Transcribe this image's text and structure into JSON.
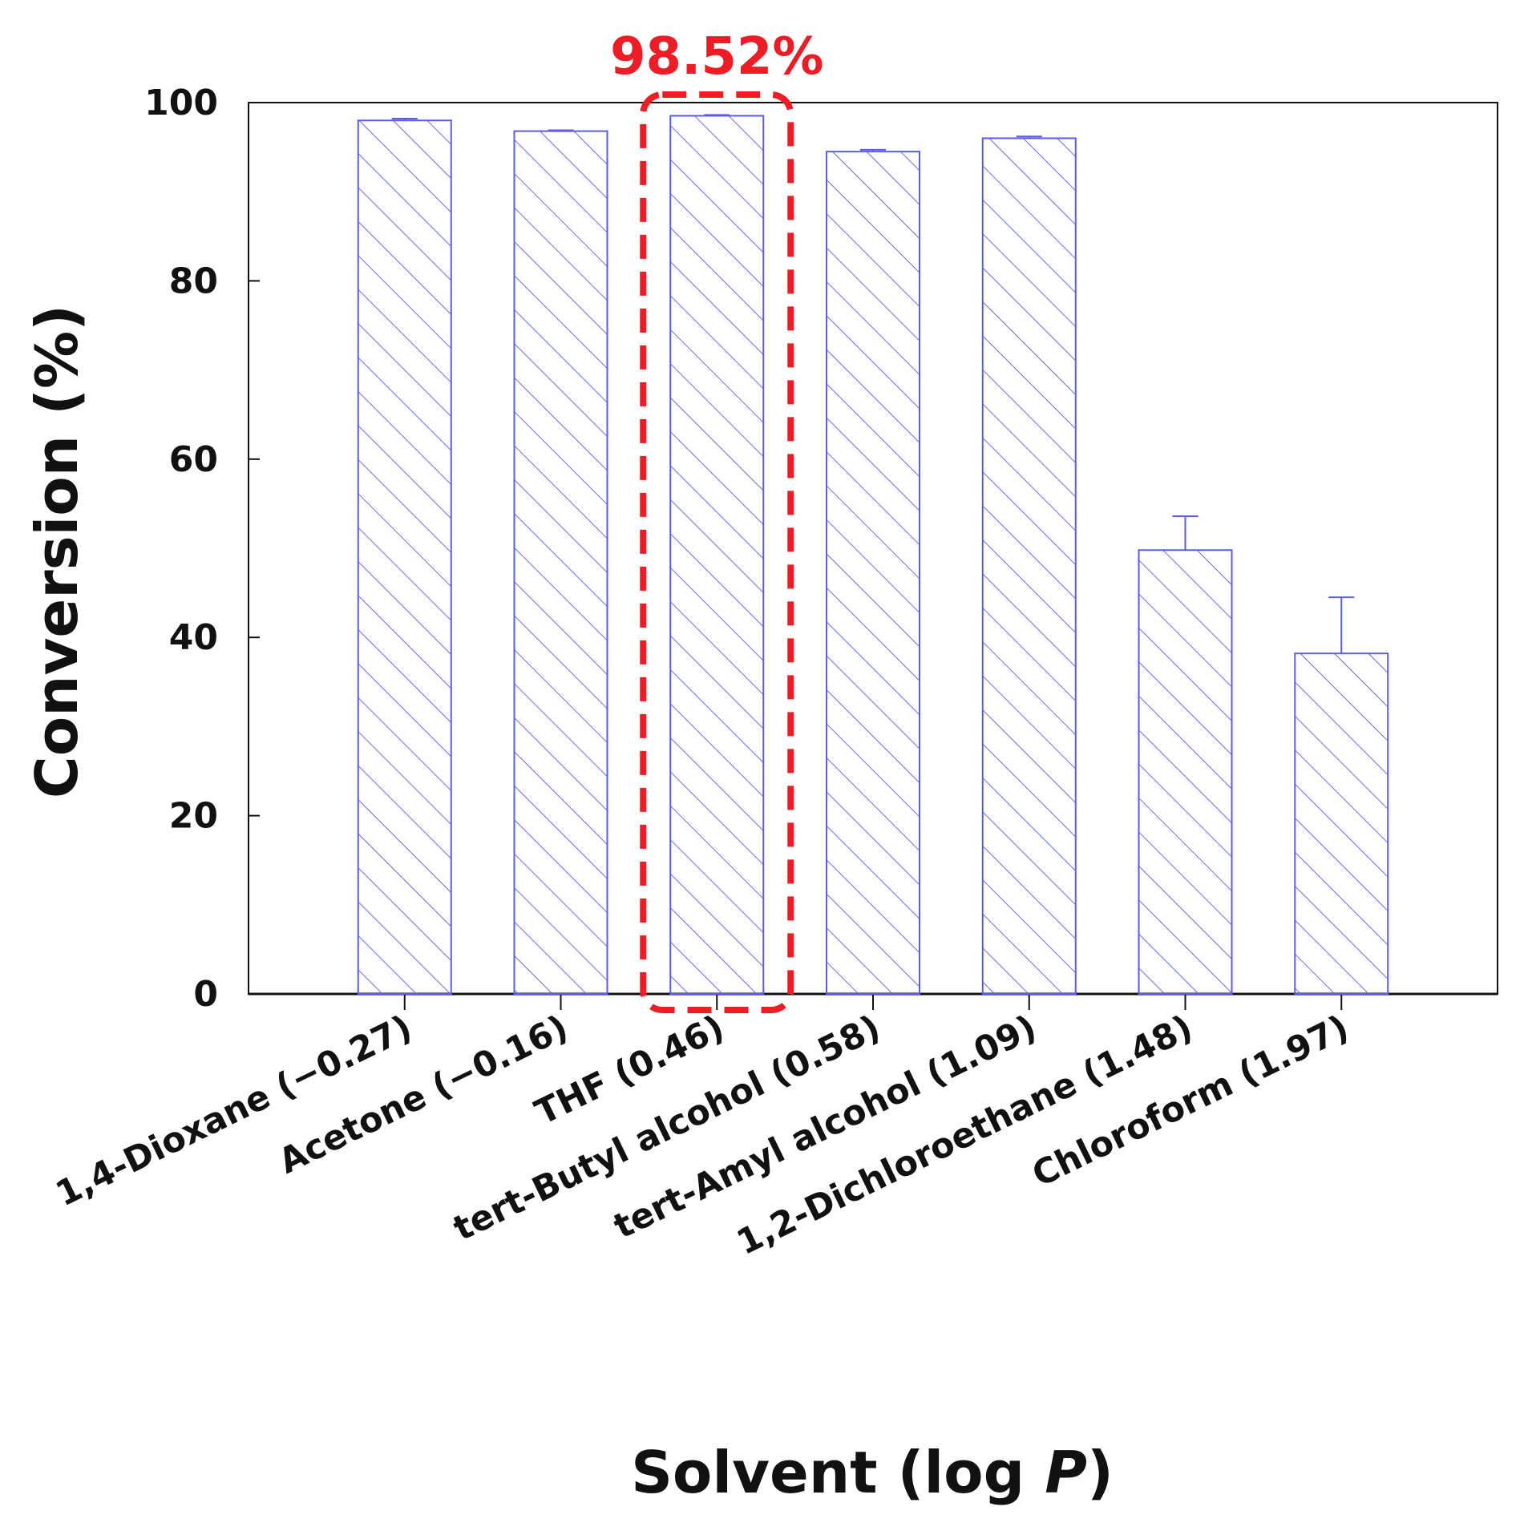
{
  "chart_data": {
    "type": "bar",
    "categories": [
      "1,4-Dioxane (−0.27)",
      "Acetone (−0.16)",
      "THF (0.46)",
      "tert-Butyl alcohol (0.58)",
      "tert-Amyl alcohol (1.09)",
      "1,2-Dichloroethane (1.48)",
      "Chloroform (1.97)"
    ],
    "values": [
      98.0,
      96.8,
      98.52,
      94.5,
      96.0,
      49.8,
      38.2
    ],
    "errors": [
      0.2,
      0.1,
      0.1,
      0.2,
      0.2,
      3.8,
      6.3
    ],
    "title": "",
    "xlabel": "Solvent (log P)",
    "xlabel_main": "Solvent (log ",
    "xlabel_italic": "P",
    "xlabel_tail": ")",
    "ylabel": "Conversion (%)",
    "ylim": [
      0,
      100
    ],
    "yticks": [
      0,
      20,
      40,
      60,
      80,
      100
    ],
    "grid": false,
    "legend": "none",
    "bar_pattern": "diagonal-hatch",
    "highlight": {
      "category_index": 2,
      "label": "98.52%"
    },
    "colors": {
      "bar": "#5b5bf0",
      "highlight": "#ee1c25",
      "axis": "#111111"
    }
  }
}
